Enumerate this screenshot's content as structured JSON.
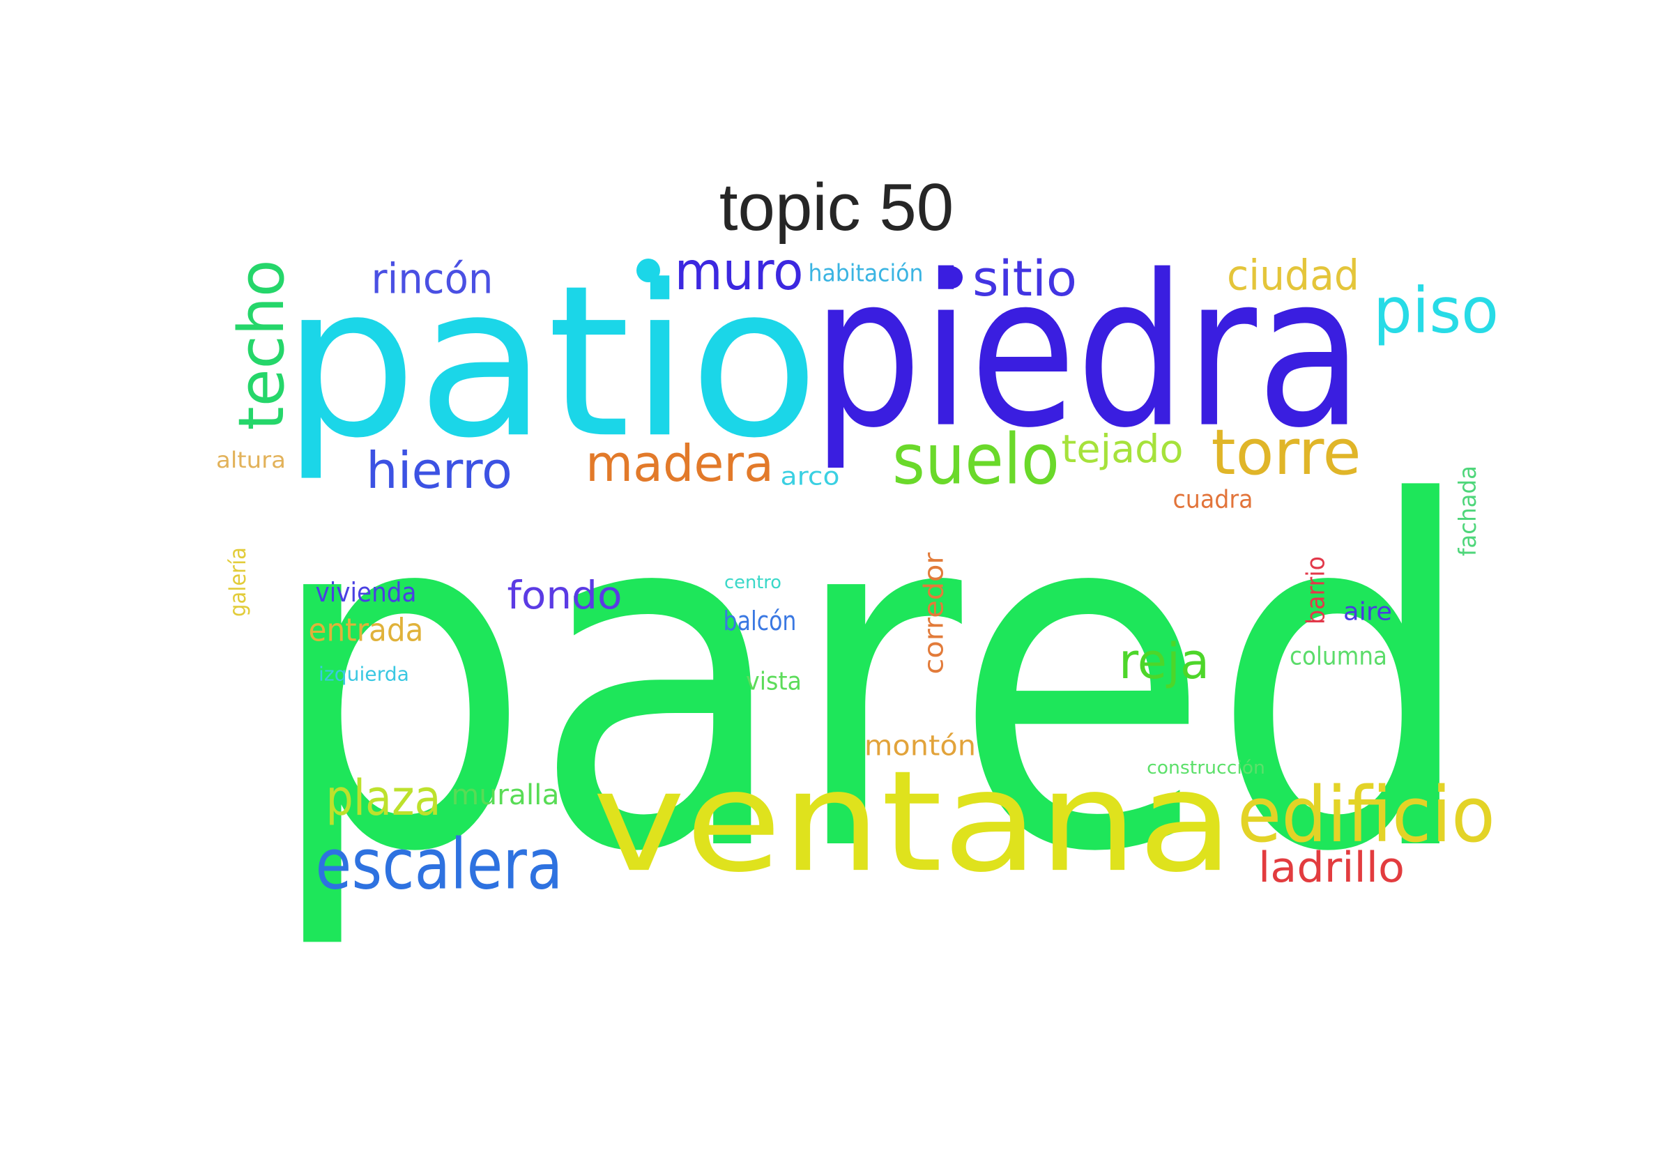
{
  "title": "topic 50",
  "chart_data": {
    "type": "wordcloud",
    "title": "topic 50",
    "words": [
      {
        "text": "pared",
        "color": "#1ee65a"
      },
      {
        "text": "patio",
        "color": "#1bd6e8"
      },
      {
        "text": "piedra",
        "color": "#3a1ee0"
      },
      {
        "text": "ventana",
        "color": "#dfe21d"
      },
      {
        "text": "edificio",
        "color": "#e3d327"
      },
      {
        "text": "escalera",
        "color": "#2e72e0"
      },
      {
        "text": "techo",
        "color": "#25d66a"
      },
      {
        "text": "suelo",
        "color": "#6ad92a"
      },
      {
        "text": "torre",
        "color": "#e0b528"
      },
      {
        "text": "madera",
        "color": "#e27a2a"
      },
      {
        "text": "hierro",
        "color": "#3c52e3"
      },
      {
        "text": "plaza",
        "color": "#bde12c"
      },
      {
        "text": "piso",
        "color": "#27dbe6"
      },
      {
        "text": "muro",
        "color": "#3c28e0"
      },
      {
        "text": "sitio",
        "color": "#4234e2"
      },
      {
        "text": "rincón",
        "color": "#4a50e3"
      },
      {
        "text": "ciudad",
        "color": "#e4c53a"
      },
      {
        "text": "reja",
        "color": "#4dd62a"
      },
      {
        "text": "ladrillo",
        "color": "#e23c3f"
      },
      {
        "text": "fondo",
        "color": "#5b3be4"
      },
      {
        "text": "tejado",
        "color": "#a6e23b"
      },
      {
        "text": "muralla",
        "color": "#58dc55"
      },
      {
        "text": "entrada",
        "color": "#e0b23a"
      },
      {
        "text": "corredor",
        "color": "#e27b3a"
      },
      {
        "text": "montón",
        "color": "#e2a33a"
      },
      {
        "text": "balcón",
        "color": "#3a78e2"
      },
      {
        "text": "vivienda",
        "color": "#4a40e2"
      },
      {
        "text": "columna",
        "color": "#5bdc6a"
      },
      {
        "text": "cuadra",
        "color": "#e2743a"
      },
      {
        "text": "vista",
        "color": "#5cdc5a"
      },
      {
        "text": "arco",
        "color": "#3ad0e2"
      },
      {
        "text": "fachada",
        "color": "#4ed67a"
      },
      {
        "text": "barrio",
        "color": "#e2384a"
      },
      {
        "text": "aire",
        "color": "#4a3ae2"
      },
      {
        "text": "izquierda",
        "color": "#3ac8e2"
      },
      {
        "text": "habitación",
        "color": "#3ab4e2"
      },
      {
        "text": "galería",
        "color": "#e2cc3a"
      },
      {
        "text": "altura",
        "color": "#e2b25a"
      },
      {
        "text": "centro",
        "color": "#3ad8c8"
      },
      {
        "text": "construcción",
        "color": "#5ce06a"
      }
    ],
    "dots": [
      {
        "color": "#1bd6e8"
      },
      {
        "color": "#3a1ee0"
      }
    ]
  }
}
